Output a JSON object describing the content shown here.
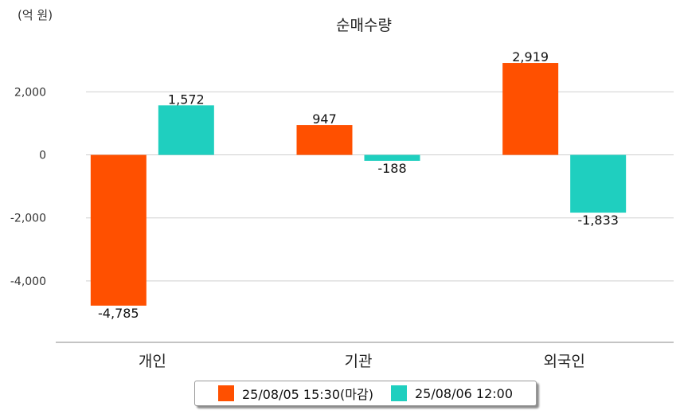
{
  "chart_data": {
    "type": "bar",
    "title": "순매수량",
    "unit_label": "(억 원)",
    "categories": [
      "개인",
      "기관",
      "외국인"
    ],
    "series": [
      {
        "name": "25/08/05 15:30(마감)",
        "color": "#ff5000",
        "values": [
          -4785,
          947,
          2919
        ]
      },
      {
        "name": "25/08/06 12:00",
        "color": "#1fcfbf",
        "values": [
          1572,
          -188,
          -1833
        ]
      }
    ],
    "data_labels": [
      [
        "-4,785",
        "947",
        "2,919"
      ],
      [
        "1,572",
        "-188",
        "-1,833"
      ]
    ],
    "y_ticks": [
      2000,
      0,
      -2000,
      -4000
    ],
    "y_tick_labels": [
      "2,000",
      "0",
      "-2,000",
      "-4,000"
    ],
    "ylim": [
      -5950,
      3400
    ],
    "grid": true,
    "legend_position": "bottom"
  }
}
